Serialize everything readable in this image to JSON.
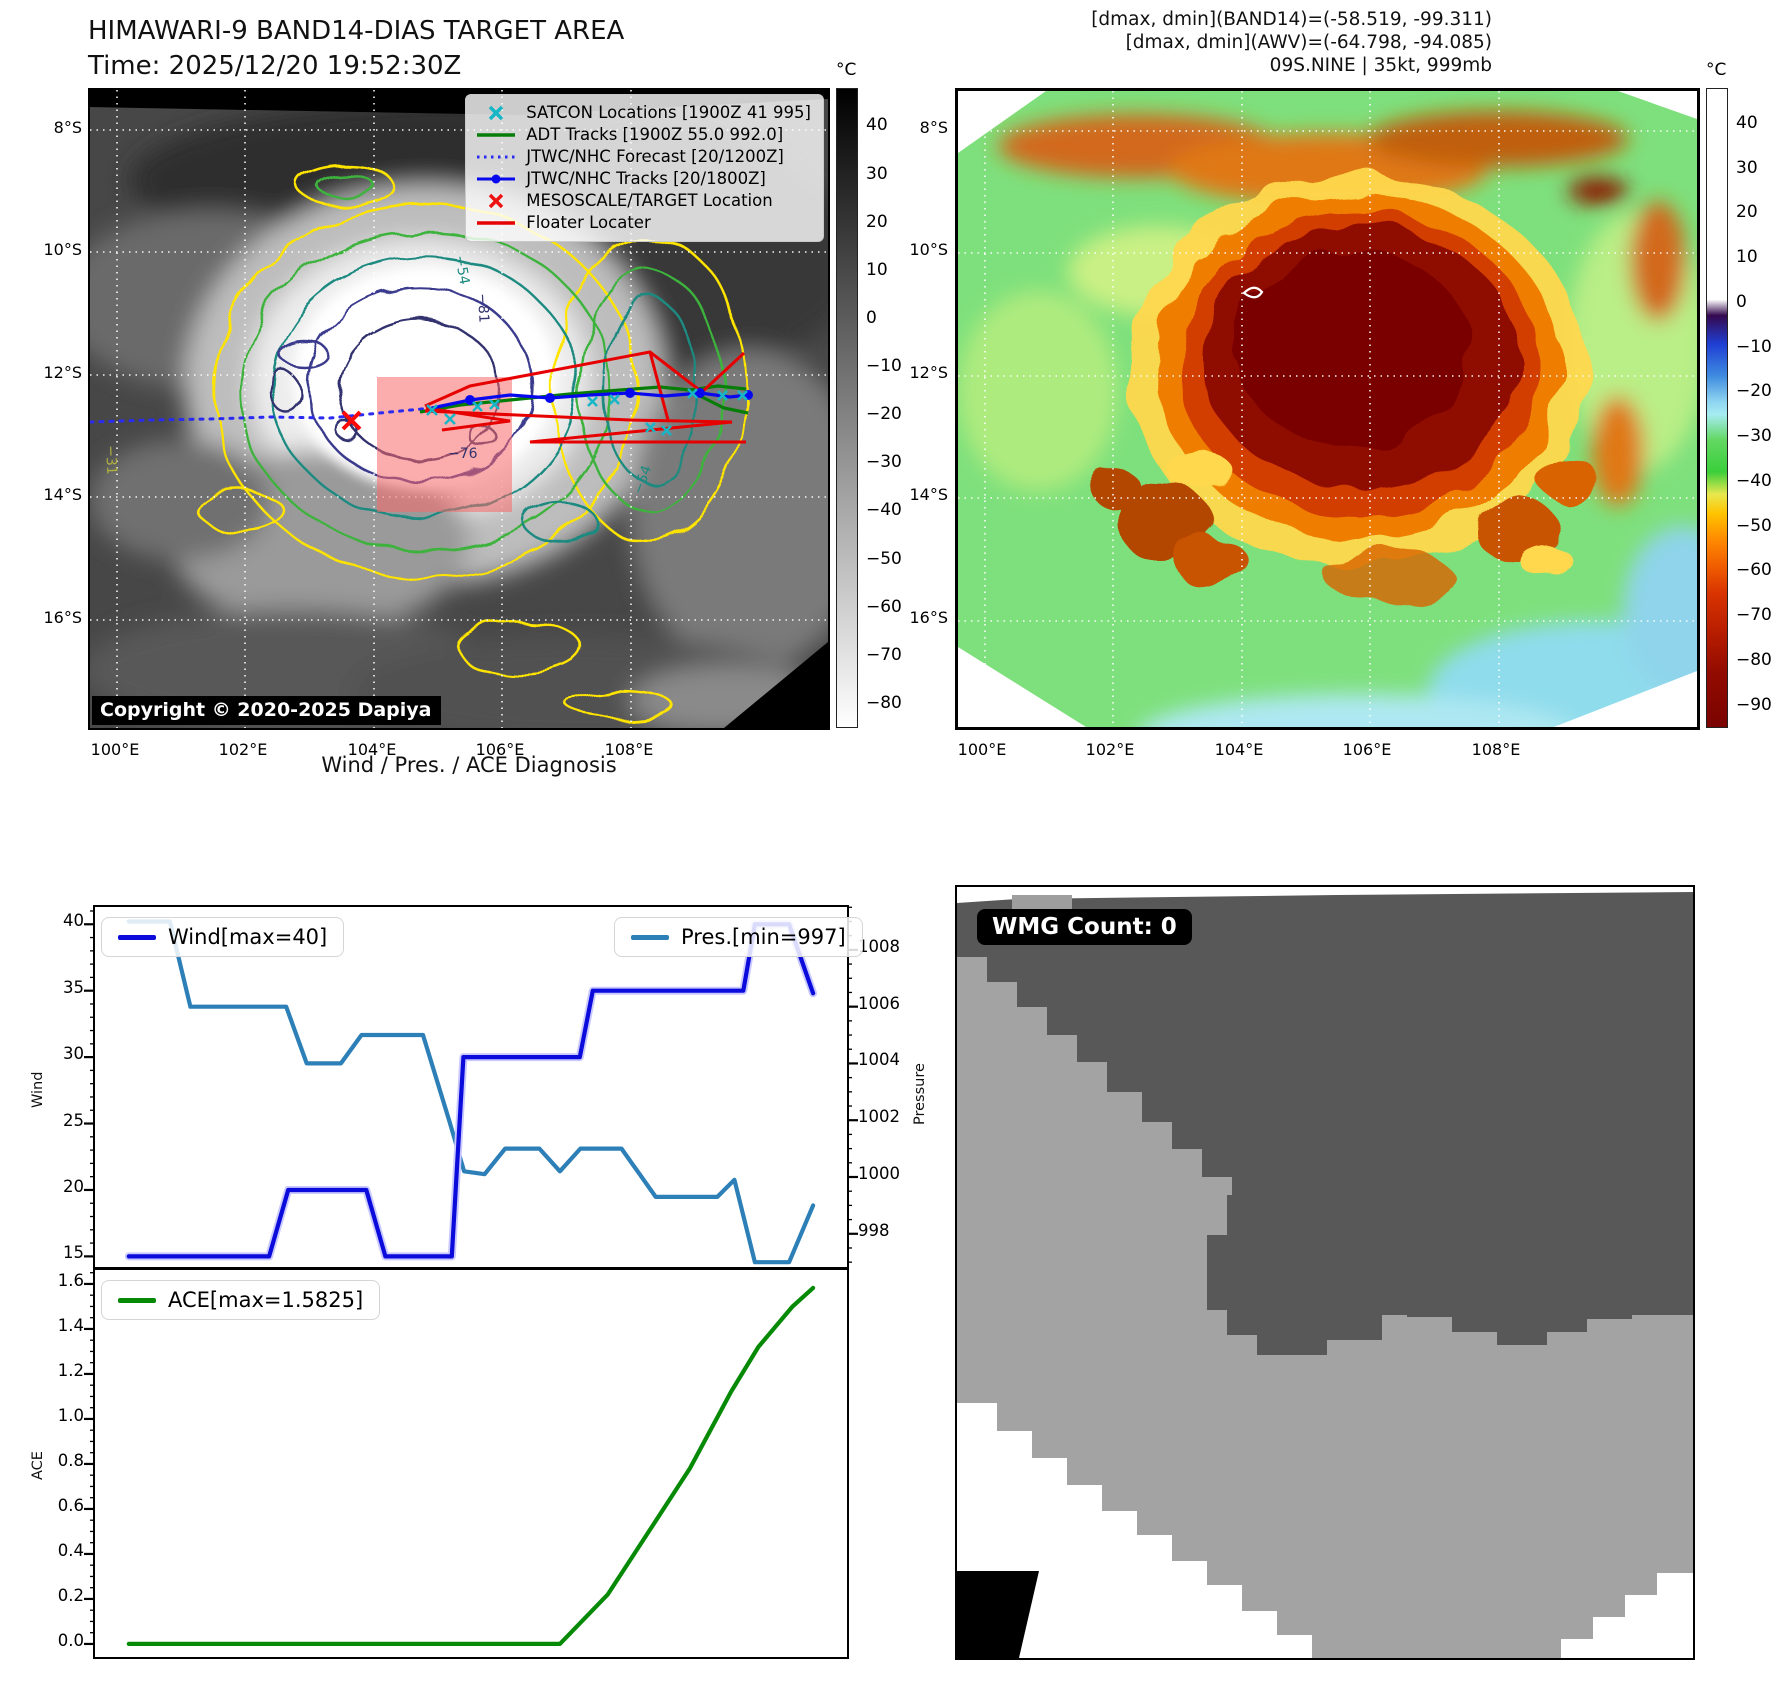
{
  "left_panel": {
    "title": "HIMAWARI-9 BAND14-DIAS TARGET AREA",
    "time": "Time: 2025/12/20 19:52:30Z",
    "copyright": "Copyright © 2020-2025 Dapiya",
    "legend": [
      {
        "label": "SATCON Locations [1900Z 41 995]",
        "marker": "x",
        "color": "#17b6c7"
      },
      {
        "label": "ADT Tracks [1900Z 55.0 992.0]",
        "marker": "line",
        "color": "#067d06"
      },
      {
        "label": "JTWC/NHC Forecast [20/1200Z]",
        "marker": "dotted",
        "color": "#2a2af0"
      },
      {
        "label": "JTWC/NHC Tracks [20/1800Z]",
        "marker": "line-dot",
        "color": "#0808ee"
      },
      {
        "label": "MESOSCALE/TARGET Location",
        "marker": "x",
        "color": "#ee1111"
      },
      {
        "label": "Floater Locater",
        "marker": "line",
        "color": "#e60000"
      }
    ],
    "lat_ticks": [
      "8°S",
      "10°S",
      "12°S",
      "14°S",
      "16°S"
    ],
    "lon_ticks": [
      "100°E",
      "102°E",
      "104°E",
      "106°E",
      "108°E"
    ],
    "contour_labels": [
      "-54",
      "-81",
      "-76",
      "-54",
      "-31"
    ],
    "colorbar": {
      "unit": "°C",
      "ticks": [
        40,
        30,
        20,
        10,
        0,
        -10,
        -20,
        -30,
        -40,
        -50,
        -60,
        -70,
        -80
      ],
      "domain": [
        48,
        -85
      ]
    }
  },
  "right_panel": {
    "info_lines": [
      "[dmax, dmin](BAND14)=(-58.519, -99.311)",
      "[dmax, dmin](AWV)=(-64.798, -94.085)",
      "09S.NINE | 35kt, 999mb"
    ],
    "lat_ticks": [
      "8°S",
      "10°S",
      "12°S",
      "14°S",
      "16°S"
    ],
    "lon_ticks": [
      "100°E",
      "102°E",
      "104°E",
      "106°E",
      "108°E"
    ],
    "colorbar": {
      "unit": "°C",
      "ticks": [
        40,
        30,
        20,
        10,
        0,
        -10,
        -20,
        -30,
        -40,
        -50,
        -60,
        -70,
        -80,
        -90
      ],
      "domain": [
        48,
        -95
      ]
    }
  },
  "diagnosis": {
    "title": "Wind / Pres. / ACE Diagnosis",
    "wind_legend": "Wind[max=40]",
    "pres_legend": "Pres.[min=997]",
    "ace_legend": "ACE[max=1.5825]",
    "wind_axis_label": "Wind",
    "pres_axis_label": "Pressure",
    "ace_axis_label": "ACE",
    "wind_ticks": [
      40,
      35,
      30,
      25,
      20,
      15
    ],
    "pres_ticks": [
      1008,
      1006,
      1004,
      1002,
      1000,
      998
    ],
    "ace_ticks": [
      "1.6",
      "1.4",
      "1.2",
      "1.0",
      "0.8",
      "0.6",
      "0.4",
      "0.2",
      "0.0"
    ]
  },
  "wmg_panel": {
    "count_label": "WMG Count: 0"
  },
  "chart_data": [
    {
      "type": "line",
      "title": "Wind / Pres. / ACE Diagnosis",
      "x_axis": "time (no tick labels shown, normalized 0-1)",
      "legend_position": "upper left / upper right",
      "series": [
        {
          "name": "Wind[max=40]",
          "axis": "left",
          "ylabel": "Wind",
          "color": "#0b0bdc",
          "ylim": [
            14.2,
            41.3
          ],
          "yticks": [
            15,
            20,
            25,
            30,
            35,
            40
          ],
          "points": [
            [
              0,
              15
            ],
            [
              0.205,
              15
            ],
            [
              0.233,
              20
            ],
            [
              0.347,
              20
            ],
            [
              0.375,
              15
            ],
            [
              0.455,
              15
            ],
            [
              0.472,
              15
            ],
            [
              0.489,
              30
            ],
            [
              0.659,
              30
            ],
            [
              0.678,
              35
            ],
            [
              0.898,
              35
            ],
            [
              0.915,
              40
            ],
            [
              0.965,
              40
            ],
            [
              1,
              34.8
            ]
          ]
        },
        {
          "name": "Pres.[min=997]",
          "axis": "right",
          "ylabel": "Pressure",
          "color": "#2d7fb8",
          "ylim": [
            996.83,
            1009.51
          ],
          "yticks": [
            998,
            1000,
            1002,
            1004,
            1006,
            1008
          ],
          "points": [
            [
              0,
              1009
            ],
            [
              0.06,
              1009
            ],
            [
              0.09,
              1006
            ],
            [
              0.23,
              1006
            ],
            [
              0.26,
              1004
            ],
            [
              0.31,
              1004
            ],
            [
              0.34,
              1005
            ],
            [
              0.43,
              1005
            ],
            [
              0.468,
              1002
            ],
            [
              0.49,
              1000.2
            ],
            [
              0.52,
              1000.1
            ],
            [
              0.55,
              1001
            ],
            [
              0.6,
              1001
            ],
            [
              0.63,
              1000.2
            ],
            [
              0.66,
              1001
            ],
            [
              0.72,
              1001
            ],
            [
              0.77,
              999.3
            ],
            [
              0.86,
              999.3
            ],
            [
              0.885,
              999.9
            ],
            [
              0.915,
              997
            ],
            [
              0.965,
              997
            ],
            [
              1,
              999
            ]
          ]
        }
      ]
    },
    {
      "type": "line",
      "x_axis": "time (no tick labels shown, normalized 0-1)",
      "series": [
        {
          "name": "ACE[max=1.5825]",
          "axis": "left",
          "ylabel": "ACE",
          "color": "#068a06",
          "ylim": [
            -0.058,
            1.662
          ],
          "yticks": [
            0.0,
            0.2,
            0.4,
            0.6,
            0.8,
            1.0,
            1.2,
            1.4,
            1.6
          ],
          "points": [
            [
              0,
              0
            ],
            [
              0.63,
              0
            ],
            [
              0.7,
              0.22
            ],
            [
              0.76,
              0.5
            ],
            [
              0.82,
              0.78
            ],
            [
              0.88,
              1.12
            ],
            [
              0.92,
              1.32
            ],
            [
              0.97,
              1.5
            ],
            [
              1,
              1.5825
            ]
          ]
        }
      ]
    }
  ]
}
